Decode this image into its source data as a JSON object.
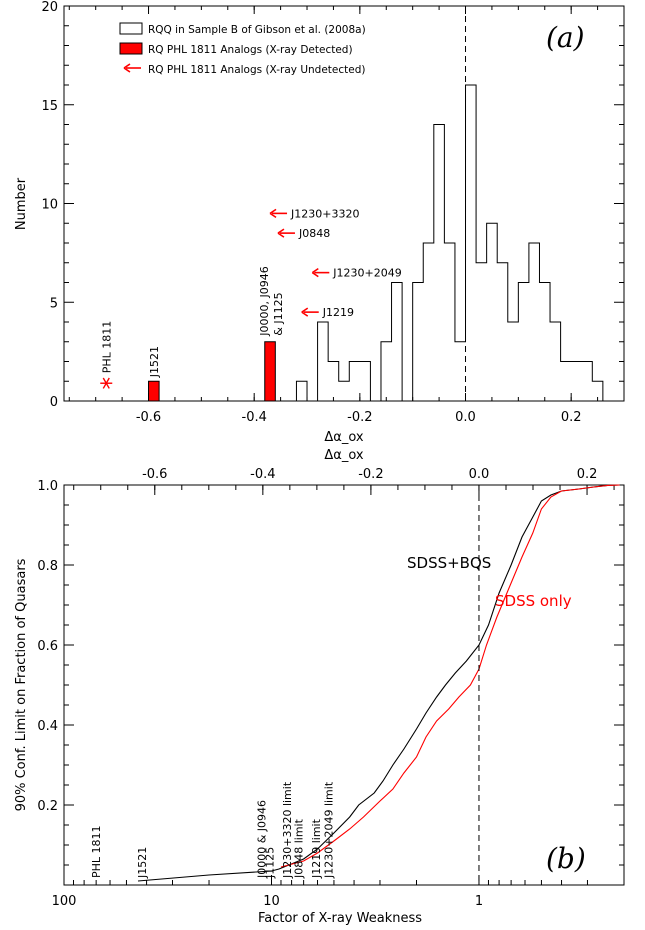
{
  "colors": {
    "axis": "#000000",
    "highlight": "#ff0000",
    "background": "#ffffff"
  },
  "chart_data": [
    {
      "type": "bar",
      "panel_label": "(a)",
      "xlabel": "Δα_ox",
      "ylabel": "Number",
      "xlim": [
        -0.76,
        0.3
      ],
      "ylim": [
        0,
        20
      ],
      "xticks": [
        "-0.6",
        "-0.4",
        "-0.2",
        "0.0",
        "0.2"
      ],
      "yticks": [
        "0",
        "5",
        "10",
        "15",
        "20"
      ],
      "histogram": {
        "name": "RQQ in Sample B of Gibson et al. (2008a)",
        "bin_width": 0.02,
        "bin_starts": [
          -0.32,
          -0.3,
          -0.28,
          -0.26,
          -0.24,
          -0.22,
          -0.2,
          -0.18,
          -0.16,
          -0.14,
          -0.12,
          -0.1,
          -0.08,
          -0.06,
          -0.04,
          -0.02,
          0.0,
          0.02,
          0.04,
          0.06,
          0.08,
          0.1,
          0.12,
          0.14,
          0.16,
          0.18,
          0.2,
          0.22,
          0.24
        ],
        "counts": [
          1,
          0,
          4,
          2,
          1,
          2,
          2,
          0,
          3,
          6,
          0,
          6,
          8,
          14,
          8,
          3,
          16,
          7,
          9,
          7,
          4,
          6,
          8,
          6,
          4,
          2,
          2,
          2,
          1
        ]
      },
      "detected_analogs": {
        "name": "RQ PHL 1811 Analogs (X-ray Detected)",
        "bars": [
          {
            "x_start": -0.6,
            "width": 0.02,
            "count": 1,
            "label": "J1521"
          },
          {
            "x_start": -0.38,
            "width": 0.02,
            "count": 3,
            "label": "J0000, J0946 & J1125"
          }
        ]
      },
      "undetected_analogs": {
        "name": "RQ PHL 1811 Analogs (X-ray Undetected)",
        "limits": [
          {
            "label": "J1230+3320",
            "x": -0.37,
            "y": 9.5
          },
          {
            "label": "J0848",
            "x": -0.355,
            "y": 8.5
          },
          {
            "label": "J1230+2049",
            "x": -0.29,
            "y": 6.5
          },
          {
            "label": "J1219",
            "x": -0.31,
            "y": 4.5
          }
        ]
      },
      "phl1811": {
        "label": "PHL 1811",
        "x": -0.68,
        "y": 0.9
      },
      "reference_line": {
        "x": 0.0,
        "style": "dashed"
      }
    },
    {
      "type": "line",
      "panel_label": "(b)",
      "xlabel": "Factor of X-ray Weakness",
      "ylabel": "90% Conf. Limit on Fraction of Quasars",
      "top_xlabel": "Δα_ox",
      "x_scale": "log",
      "x_direction": "decreasing",
      "xlim": [
        100,
        0.2
      ],
      "ylim": [
        0,
        1
      ],
      "xticks": [
        "100",
        "10",
        "1"
      ],
      "yticks": [
        "0.2",
        "0.4",
        "0.6",
        "0.8",
        "1.0"
      ],
      "top_xticks": [
        "-0.6",
        "-0.4",
        "-0.2",
        "0.0",
        "0.2"
      ],
      "series": [
        {
          "name": "SDSS+BQS",
          "color": "#000000",
          "x": [
            44,
            20,
            10,
            9.2,
            7,
            6,
            5,
            4.2,
            3.8,
            3.2,
            2.9,
            2.6,
            2.3,
            2.0,
            1.8,
            1.6,
            1.45,
            1.3,
            1.15,
            1.0,
            0.9,
            0.8,
            0.7,
            0.62,
            0.55,
            0.5,
            0.45,
            0.4,
            0.33,
            0.28,
            0.24,
            0.21
          ],
          "y": [
            0.01,
            0.025,
            0.035,
            0.04,
            0.065,
            0.09,
            0.13,
            0.17,
            0.2,
            0.23,
            0.26,
            0.3,
            0.34,
            0.39,
            0.43,
            0.47,
            0.5,
            0.53,
            0.56,
            0.6,
            0.65,
            0.73,
            0.8,
            0.87,
            0.92,
            0.96,
            0.975,
            0.985,
            0.99,
            0.995,
            0.999,
            1.0
          ]
        },
        {
          "name": "SDSS only",
          "color": "#ff0000",
          "x": [
            9.0,
            7,
            6,
            5,
            4.2,
            3.6,
            3.0,
            2.6,
            2.3,
            2.0,
            1.8,
            1.6,
            1.4,
            1.25,
            1.1,
            1.0,
            0.92,
            0.82,
            0.72,
            0.62,
            0.55,
            0.5,
            0.45,
            0.4,
            0.33,
            0.28,
            0.24,
            0.21
          ],
          "y": [
            0.045,
            0.06,
            0.08,
            0.11,
            0.14,
            0.17,
            0.21,
            0.24,
            0.28,
            0.32,
            0.37,
            0.41,
            0.44,
            0.47,
            0.5,
            0.54,
            0.6,
            0.67,
            0.74,
            0.82,
            0.88,
            0.94,
            0.97,
            0.985,
            0.99,
            0.995,
            0.999,
            1.0
          ]
        }
      ],
      "annotations": [
        {
          "label": "PHL 1811",
          "x": 70
        },
        {
          "label": "J1521",
          "x": 42
        },
        {
          "label": "J0000 & J0946",
          "x": 11.2
        },
        {
          "label": "J1125",
          "x": 10.2
        },
        {
          "label": "J1230+3320 limit",
          "x": 8.4
        },
        {
          "label": "J0848 limit",
          "x": 7.4
        },
        {
          "label": "J1219 limit",
          "x": 6.1
        },
        {
          "label": "J1230+2049 limit",
          "x": 5.3
        }
      ],
      "reference_line": {
        "x": 1,
        "style": "dashed"
      }
    }
  ]
}
